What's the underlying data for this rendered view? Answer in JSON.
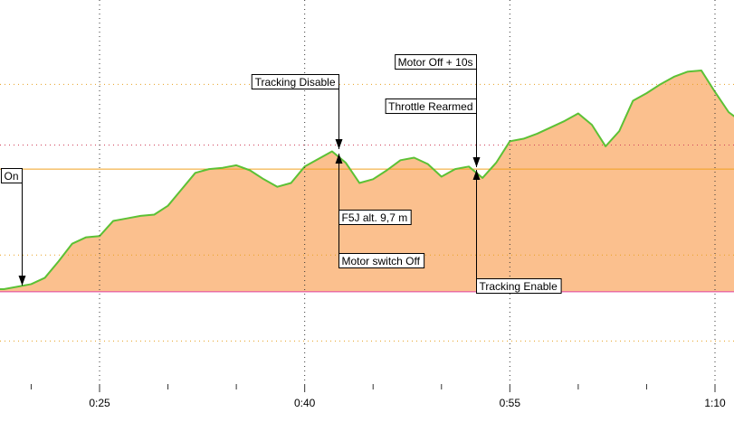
{
  "chart_data": {
    "type": "area",
    "x": [
      17.5,
      18,
      19,
      20,
      21,
      22,
      23,
      24,
      25,
      26,
      27,
      28,
      29,
      30,
      31,
      32,
      33,
      34,
      35,
      36,
      37,
      38,
      39,
      40,
      41,
      42,
      43,
      44,
      45,
      46,
      47,
      48,
      49,
      50,
      51,
      52,
      53,
      54,
      55,
      56,
      57,
      58,
      59,
      60,
      61,
      62,
      63,
      64,
      65,
      66,
      67,
      68,
      69,
      70,
      71,
      71.5
    ],
    "values": [
      0.2,
      0.2,
      0.4,
      0.6,
      1.1,
      2.4,
      3.8,
      4.3,
      4.4,
      5.6,
      5.8,
      6.0,
      6.1,
      6.8,
      8.1,
      9.4,
      9.7,
      9.8,
      10.0,
      9.6,
      8.9,
      8.3,
      8.6,
      9.9,
      10.5,
      11.1,
      10.2,
      8.6,
      8.9,
      9.6,
      10.4,
      10.6,
      10.1,
      9.1,
      9.7,
      9.9,
      9.0,
      10.2,
      11.9,
      12.1,
      12.5,
      13.0,
      13.5,
      14.1,
      13.2,
      11.5,
      12.7,
      15.1,
      15.7,
      16.4,
      17.0,
      17.4,
      17.5,
      15.8,
      14.2,
      13.8
    ],
    "color": "#5cc135",
    "fill": "#fbc08e",
    "xlim": [
      17.72,
      71.39
    ],
    "ylim": [
      -7.3,
      23.07
    ],
    "xticks": [
      {
        "value": 25,
        "label": "0:25"
      },
      {
        "value": 40,
        "label": "0:40"
      },
      {
        "value": 55,
        "label": "0:55"
      },
      {
        "value": 70,
        "label": "1:10"
      }
    ],
    "minor_xticks": [
      20,
      30,
      35,
      45,
      50,
      60,
      65
    ],
    "grid": true,
    "reference_lines": [
      {
        "value": 16.4,
        "color": "#e8a020",
        "style": "dotted"
      },
      {
        "value": 11.6,
        "color": "#d0405a",
        "style": "dotted"
      },
      {
        "value": 9.7,
        "color": "#f0a020",
        "style": "solid"
      },
      {
        "value": 2.9,
        "color": "#e8a020",
        "style": "dotted"
      },
      {
        "value": 0,
        "color": "#e040a0",
        "style": "solid"
      },
      {
        "value": -3.9,
        "color": "#e8a020",
        "style": "dotted"
      }
    ],
    "annotations": [
      {
        "label": "On",
        "x": 19.3
      },
      {
        "label": "Tracking Disable",
        "x": 42.5
      },
      {
        "label": "Motor Off + 10s",
        "x": 52.5
      },
      {
        "label": "Throttle Rearmed",
        "x": 52.5
      },
      {
        "label": "F5J alt. 9,7 m",
        "x": 42.5
      },
      {
        "label": "Motor switch Off",
        "x": 42.5
      },
      {
        "label": "Tracking Enable",
        "x": 52.5
      }
    ]
  }
}
